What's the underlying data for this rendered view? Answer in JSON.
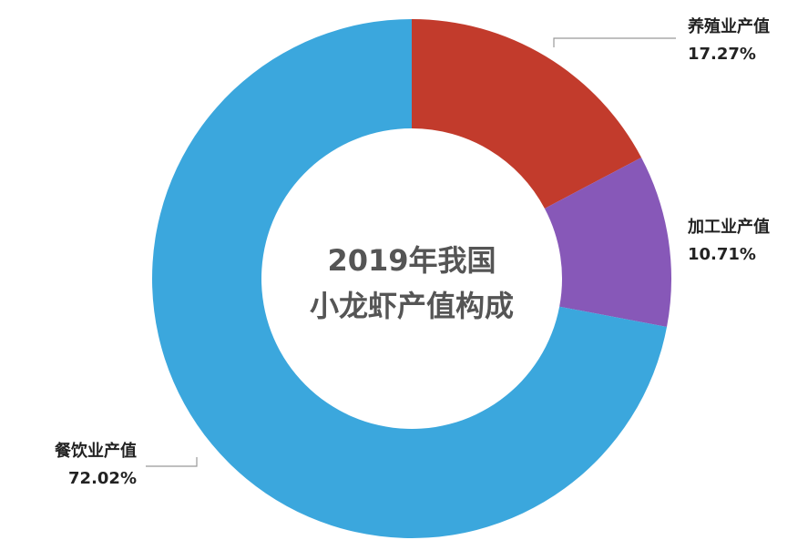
{
  "chart_data": {
    "type": "donut",
    "title": [
      "2019年我国",
      "小龙虾产值构成"
    ],
    "categories": [
      "养殖业产值",
      "加工业产值",
      "餐饮业产值"
    ],
    "values": [
      17.27,
      10.71,
      72.02
    ],
    "value_labels": [
      "17.27%",
      "10.71%",
      "72.02%"
    ],
    "colors": [
      "#c23b2c",
      "#8758b8",
      "#3ba7dd"
    ]
  }
}
